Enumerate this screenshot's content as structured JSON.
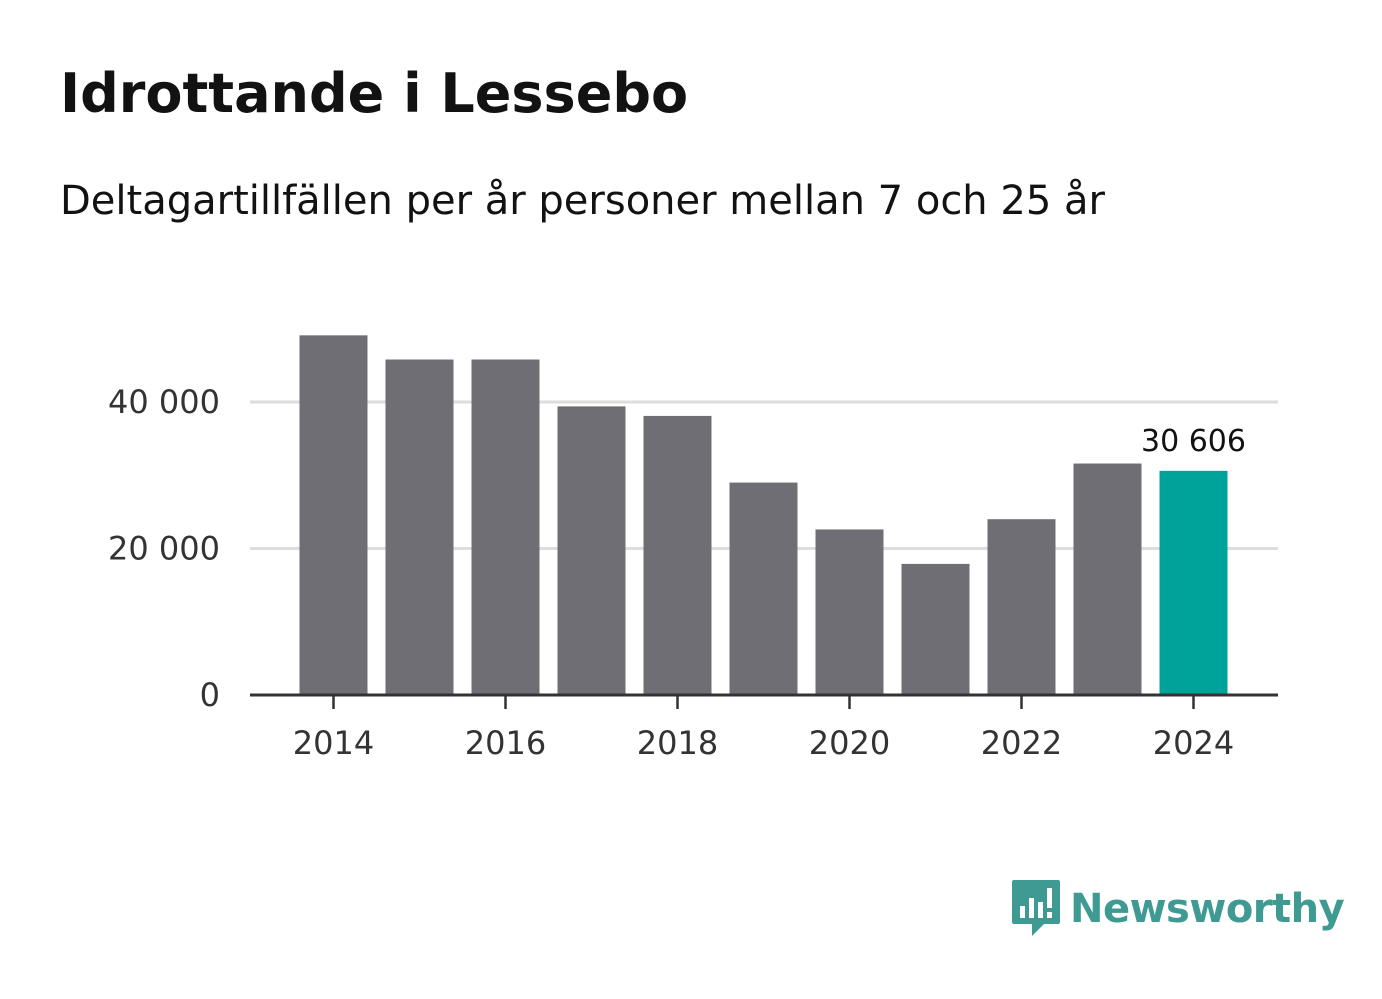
{
  "title": "Idrottande i Lessebo",
  "subtitle": "Deltagartillfällen per år personer mellan 7 och 25 år",
  "chart_data": {
    "type": "bar",
    "title": "Idrottande i Lessebo",
    "subtitle": "Deltagartillfällen per år personer mellan 7 och 25 år",
    "categories": [
      "2014",
      "2015",
      "2016",
      "2017",
      "2018",
      "2019",
      "2020",
      "2021",
      "2022",
      "2023",
      "2024"
    ],
    "values": [
      49100,
      45800,
      45800,
      39400,
      38100,
      29000,
      22600,
      17900,
      24000,
      31600,
      30606
    ],
    "x_tick_labels": [
      "2014",
      "2016",
      "2018",
      "2020",
      "2022",
      "2024"
    ],
    "y_ticks": [
      0,
      20000,
      40000
    ],
    "y_tick_labels": [
      "0",
      "20 000",
      "40 000"
    ],
    "ylim": [
      0,
      50000
    ],
    "highlight_index": 10,
    "highlight_label": "30 606",
    "bar_color": "#6f6e74",
    "highlight_color": "#00a39a",
    "grid_color": "#dddddd",
    "axis_color": "#333333",
    "xlabel": "",
    "ylabel": ""
  },
  "branding": {
    "logo_text": "Newsworthy",
    "logo_icon": "newsworthy-chart-bubble-icon",
    "color": "#3e9a92"
  }
}
